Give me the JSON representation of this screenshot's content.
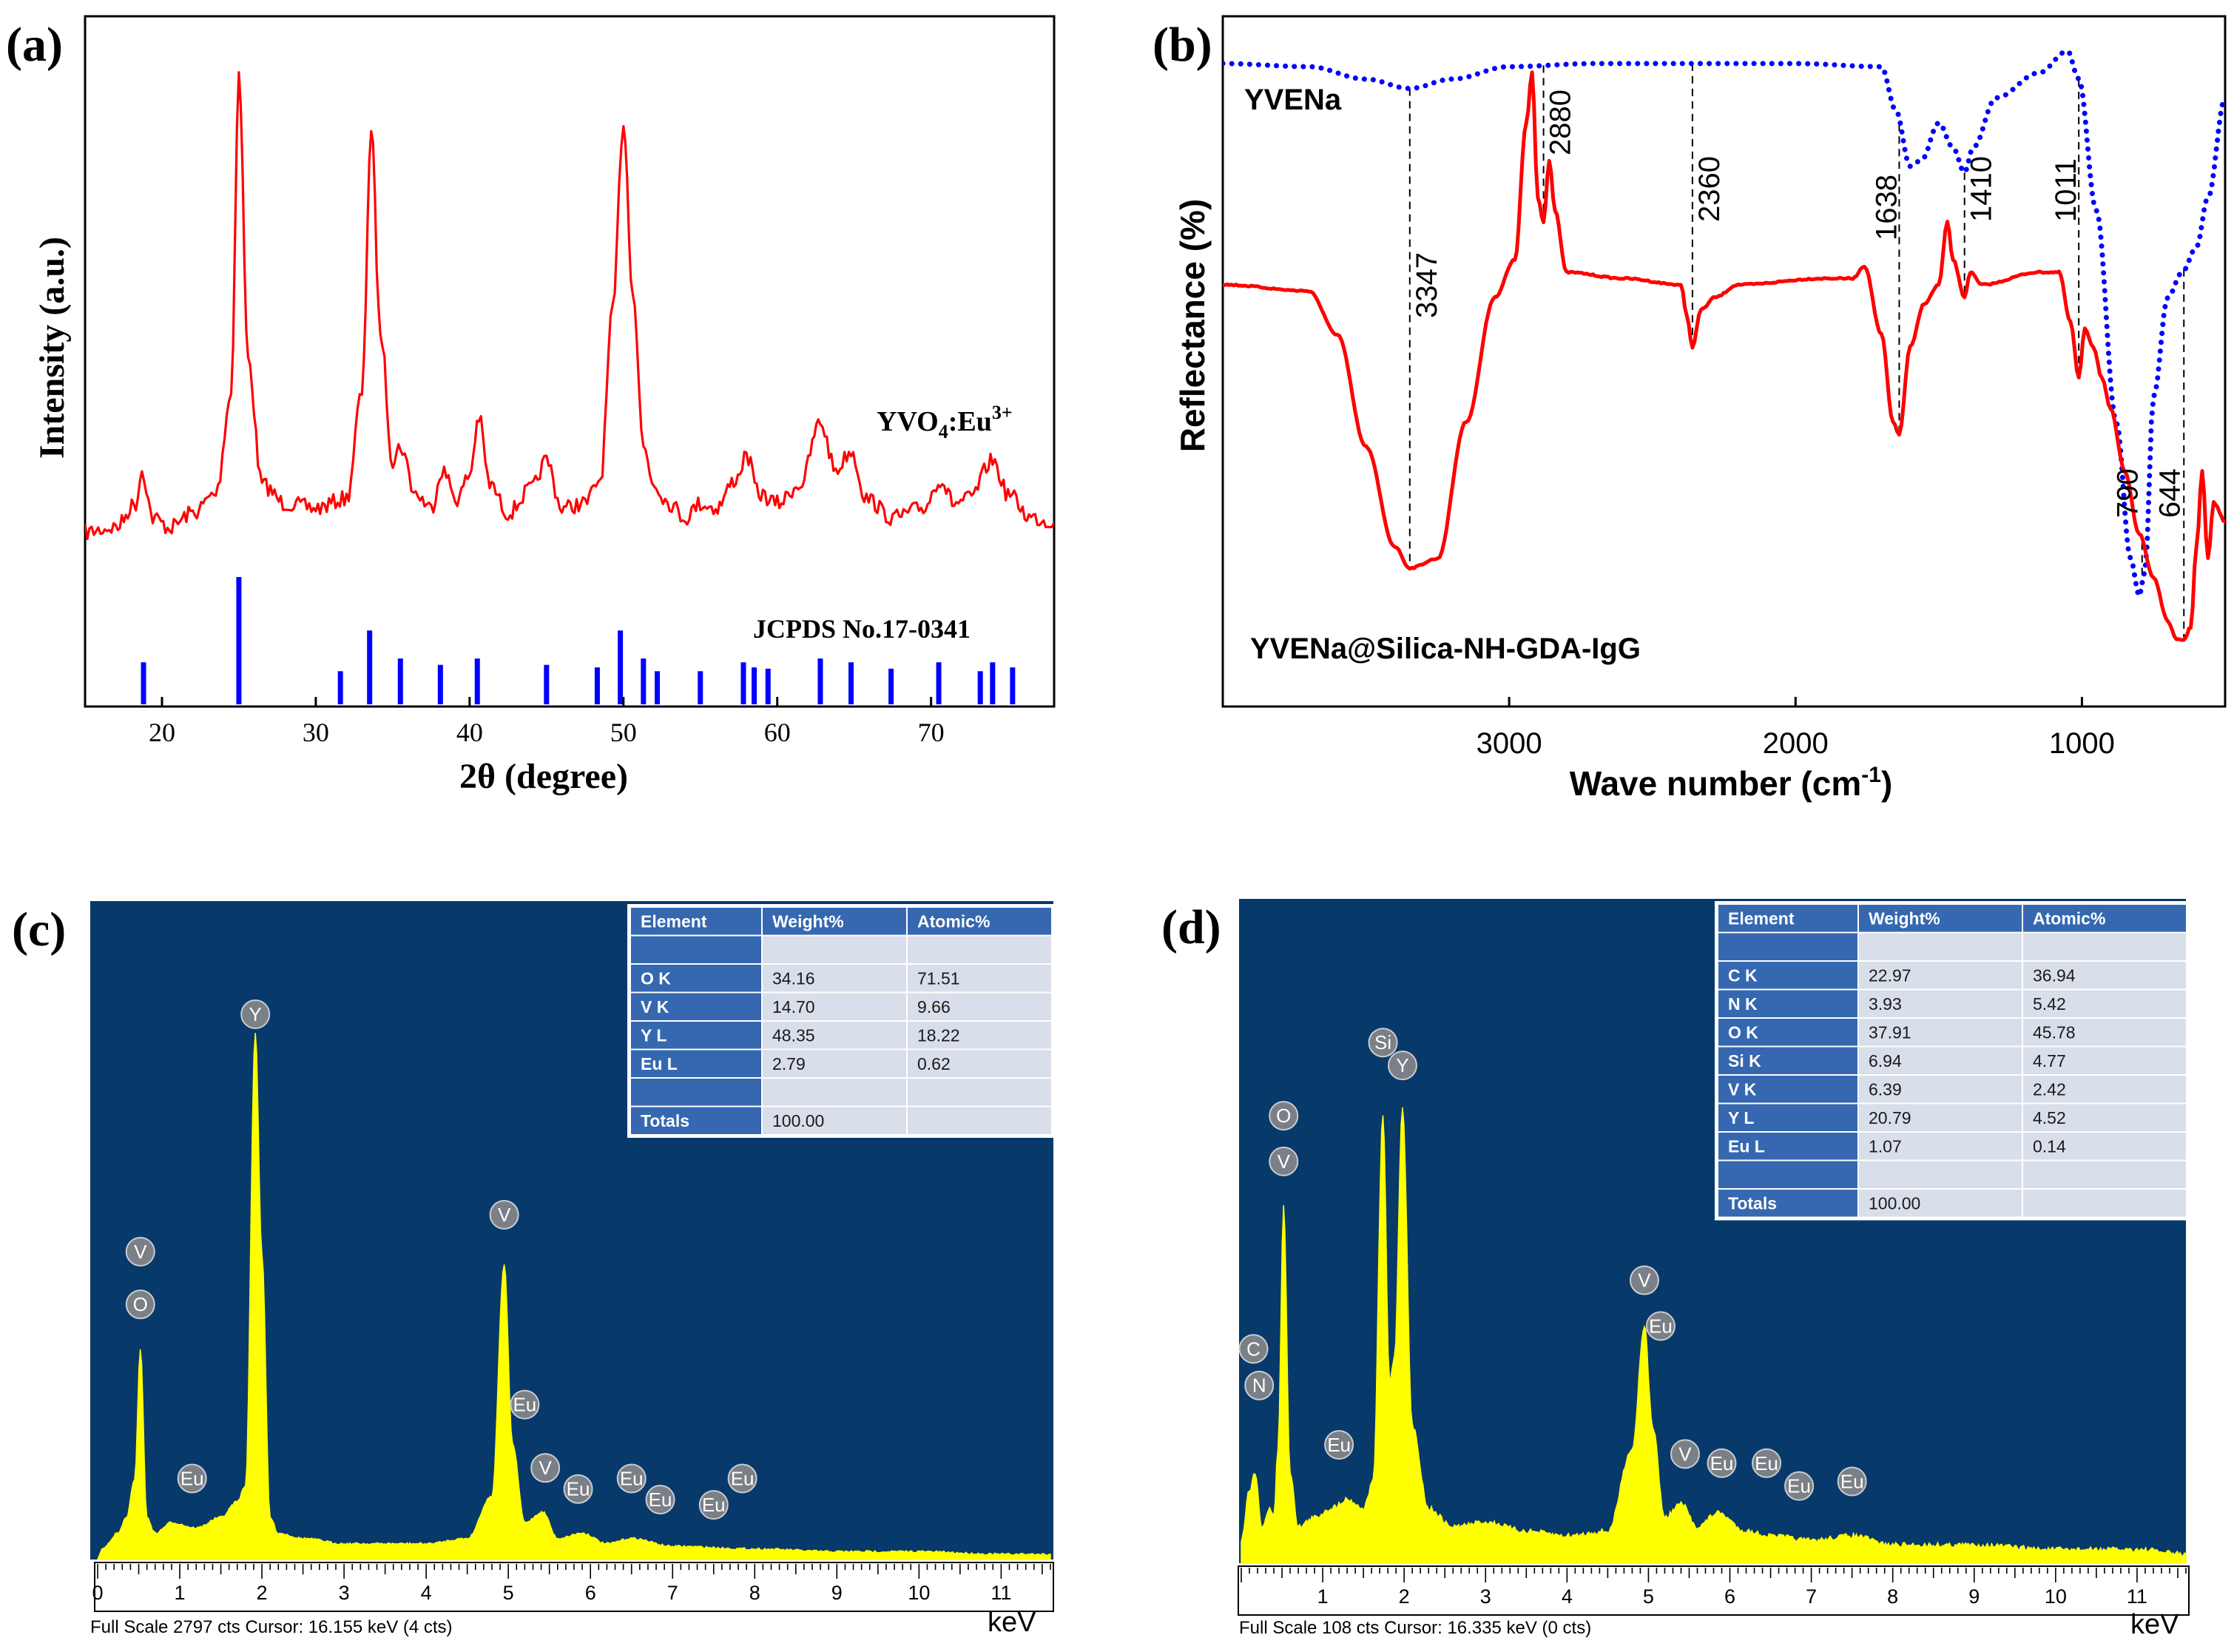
{
  "chart_data": [
    {
      "panel": "(a)",
      "type": "line",
      "xlabel": "2θ (degree)",
      "ylabel": "Intensity (a.u.)",
      "xlim": [
        15,
        78
      ],
      "xticks": [
        20,
        30,
        40,
        50,
        60,
        70
      ],
      "series": [
        {
          "name": "YVO4:Eu3+",
          "name_main": "YVO",
          "name_sub": "4",
          "name_rest": ":Eu",
          "name_sup": "3+",
          "color": "#ff0000",
          "x": [
            15,
            17,
            18.3,
            18.7,
            19.4,
            20.5,
            22,
            23.5,
            24.5,
            25.0,
            25.6,
            26.5,
            28,
            30,
            32,
            33.0,
            33.6,
            34.2,
            35.0,
            35.5,
            36.5,
            37.5,
            38.2,
            39.2,
            40.0,
            40.6,
            41.3,
            42.5,
            44.0,
            45.0,
            46.0,
            47.5,
            48.5,
            49.3,
            50.0,
            50.6,
            51.3,
            52.0,
            53.0,
            54.0,
            55.0,
            56.0,
            57.3,
            58.0,
            58.8,
            60.0,
            61.5,
            62.8,
            63.8,
            64.8,
            65.8,
            67.5,
            69.5,
            70.6,
            71.5,
            72.5,
            74.0,
            75.0,
            76.5,
            78
          ],
          "y": [
            0.04,
            0.05,
            0.1,
            0.17,
            0.07,
            0.05,
            0.08,
            0.12,
            0.33,
            1.0,
            0.4,
            0.14,
            0.1,
            0.09,
            0.11,
            0.33,
            0.88,
            0.46,
            0.19,
            0.22,
            0.12,
            0.09,
            0.17,
            0.11,
            0.16,
            0.28,
            0.14,
            0.08,
            0.13,
            0.19,
            0.09,
            0.1,
            0.15,
            0.5,
            0.9,
            0.55,
            0.22,
            0.14,
            0.1,
            0.07,
            0.1,
            0.09,
            0.15,
            0.2,
            0.12,
            0.1,
            0.14,
            0.27,
            0.17,
            0.21,
            0.11,
            0.07,
            0.09,
            0.15,
            0.1,
            0.11,
            0.19,
            0.12,
            0.07,
            0.06
          ]
        }
      ],
      "reference": {
        "label": "JCPDS No.17-0341",
        "color": "#0000ff",
        "x": [
          18.8,
          25.0,
          31.6,
          33.5,
          35.5,
          38.1,
          40.5,
          45.0,
          48.3,
          49.8,
          51.3,
          52.2,
          55.0,
          57.8,
          58.5,
          59.4,
          62.8,
          64.8,
          67.4,
          70.5,
          73.2,
          74.0,
          75.3
        ],
        "y": [
          0.33,
          1.0,
          0.26,
          0.58,
          0.36,
          0.31,
          0.36,
          0.31,
          0.29,
          0.58,
          0.36,
          0.26,
          0.26,
          0.33,
          0.29,
          0.28,
          0.36,
          0.33,
          0.28,
          0.33,
          0.26,
          0.33,
          0.29
        ]
      }
    },
    {
      "panel": "(b)",
      "type": "line",
      "xlabel": "Wave number (cm",
      "xlabel_sup": "-1",
      "xlabel_end": ")",
      "ylabel": "Reflectance (%)",
      "xlim": [
        4000,
        500
      ],
      "xticks": [
        3000,
        2000,
        1000
      ],
      "series": [
        {
          "name": "YVENa",
          "color": "#0000ff",
          "style": "dotted",
          "x": [
            4000,
            3700,
            3500,
            3347,
            3200,
            3000,
            2700,
            2400,
            2000,
            1700,
            1650,
            1600,
            1560,
            1500,
            1450,
            1410,
            1380,
            1300,
            1150,
            1050,
            1011,
            950,
            880,
            830,
            800,
            780,
            750,
            700,
            650,
            600,
            560,
            500
          ],
          "y": [
            0.955,
            0.95,
            0.93,
            0.915,
            0.93,
            0.95,
            0.955,
            0.955,
            0.955,
            0.95,
            0.88,
            0.79,
            0.8,
            0.86,
            0.82,
            0.78,
            0.82,
            0.9,
            0.94,
            0.975,
            0.93,
            0.72,
            0.38,
            0.16,
            0.1,
            0.14,
            0.42,
            0.58,
            0.62,
            0.66,
            0.74,
            0.9
          ]
        },
        {
          "name": "YVENa@Silica-NH-GDA-IgG",
          "color": "#ff0000",
          "style": "solid",
          "x": [
            4000,
            3700,
            3600,
            3500,
            3400,
            3347,
            3250,
            3150,
            3050,
            2980,
            2940,
            2920,
            2900,
            2880,
            2860,
            2840,
            2800,
            2600,
            2400,
            2380,
            2360,
            2330,
            2280,
            2200,
            1900,
            1800,
            1760,
            1700,
            1660,
            1638,
            1600,
            1550,
            1500,
            1470,
            1450,
            1410,
            1390,
            1350,
            1150,
            1080,
            1040,
            1011,
            990,
            960,
            930,
            900,
            850,
            800,
            750,
            700,
            670,
            644,
            620,
            600,
            580,
            560,
            540,
            500
          ],
          "y": [
            0.6,
            0.59,
            0.52,
            0.34,
            0.18,
            0.145,
            0.16,
            0.38,
            0.58,
            0.64,
            0.86,
            0.94,
            0.74,
            0.7,
            0.8,
            0.72,
            0.62,
            0.61,
            0.6,
            0.55,
            0.5,
            0.56,
            0.58,
            0.6,
            0.61,
            0.61,
            0.63,
            0.52,
            0.38,
            0.36,
            0.5,
            0.57,
            0.6,
            0.7,
            0.64,
            0.58,
            0.62,
            0.6,
            0.62,
            0.62,
            0.54,
            0.45,
            0.53,
            0.5,
            0.45,
            0.4,
            0.3,
            0.2,
            0.13,
            0.06,
            0.03,
            0.03,
            0.05,
            0.18,
            0.3,
            0.16,
            0.25,
            0.22
          ]
        }
      ],
      "annotations": [
        "3347",
        "2880",
        "2360",
        "1638",
        "1410",
        "1011",
        "790",
        "644"
      ],
      "annotation_x": [
        3347,
        2880,
        2360,
        1638,
        1410,
        1011,
        790,
        644
      ]
    },
    {
      "panel": "(c)",
      "type": "line",
      "xlabel": "keV",
      "xlim": [
        0,
        11.6
      ],
      "xticks": [
        0,
        1,
        2,
        3,
        4,
        5,
        6,
        7,
        8,
        9,
        10,
        11
      ],
      "footer": "Full Scale 2797 cts  Cursor: 16.155 keV (4 cts)",
      "series": [
        {
          "name": "EDS spectrum",
          "color": "#ffff00",
          "x": [
            0.05,
            0.25,
            0.35,
            0.45,
            0.52,
            0.6,
            0.7,
            0.9,
            1.2,
            1.5,
            1.7,
            1.8,
            1.92,
            2.0,
            2.1,
            2.2,
            2.5,
            3.0,
            3.5,
            4.0,
            4.5,
            4.8,
            4.95,
            5.05,
            5.2,
            5.42,
            5.6,
            5.9,
            6.2,
            6.5,
            7.0,
            8.0,
            9.0,
            10.0,
            11.0,
            11.6
          ],
          "y": [
            0.02,
            0.05,
            0.08,
            0.15,
            0.4,
            0.08,
            0.05,
            0.07,
            0.06,
            0.08,
            0.11,
            0.14,
            1.0,
            0.58,
            0.08,
            0.05,
            0.04,
            0.03,
            0.03,
            0.03,
            0.04,
            0.12,
            0.56,
            0.22,
            0.07,
            0.09,
            0.04,
            0.05,
            0.03,
            0.04,
            0.025,
            0.02,
            0.015,
            0.015,
            0.01,
            0.01
          ]
        }
      ],
      "peak_labels": [
        {
          "text": "Y",
          "x": 1.92,
          "y": 1.0
        },
        {
          "text": "V",
          "x": 0.52,
          "y": 0.55
        },
        {
          "text": "O",
          "x": 0.52,
          "y": 0.45
        },
        {
          "text": "Eu",
          "x": 1.15,
          "y": 0.12
        },
        {
          "text": "V",
          "x": 4.95,
          "y": 0.62
        },
        {
          "text": "Eu",
          "x": 5.2,
          "y": 0.26
        },
        {
          "text": "V",
          "x": 5.45,
          "y": 0.14
        },
        {
          "text": "Eu",
          "x": 5.85,
          "y": 0.1
        },
        {
          "text": "Eu",
          "x": 6.5,
          "y": 0.12
        },
        {
          "text": "Eu",
          "x": 6.85,
          "y": 0.08
        },
        {
          "text": "Eu",
          "x": 7.5,
          "y": 0.07
        },
        {
          "text": "Eu",
          "x": 7.85,
          "y": 0.12
        }
      ],
      "table": {
        "headers": [
          "Element",
          "Weight%",
          "Atomic%"
        ],
        "rows": [
          [
            "",
            "",
            ""
          ],
          [
            "O K",
            "34.16",
            "71.51"
          ],
          [
            "V K",
            "14.70",
            "9.66"
          ],
          [
            "Y L",
            "48.35",
            "18.22"
          ],
          [
            "Eu L",
            "2.79",
            "0.62"
          ],
          [
            "",
            "",
            ""
          ],
          [
            "Totals",
            "100.00",
            ""
          ]
        ]
      }
    },
    {
      "panel": "(d)",
      "type": "line",
      "xlabel": "keV",
      "xlim": [
        0,
        11.6
      ],
      "xticks": [
        1,
        2,
        3,
        4,
        5,
        6,
        7,
        8,
        9,
        10,
        11
      ],
      "footer": "Full Scale 108 cts  Cursor: 16.335 keV (0 cts)",
      "series": [
        {
          "name": "EDS spectrum",
          "color": "#ffff00",
          "x": [
            0.0,
            0.1,
            0.17,
            0.25,
            0.35,
            0.4,
            0.45,
            0.52,
            0.6,
            0.7,
            0.9,
            1.1,
            1.3,
            1.5,
            1.62,
            1.74,
            1.82,
            1.88,
            1.98,
            2.1,
            2.3,
            2.6,
            3.0,
            3.5,
            4.0,
            4.5,
            4.8,
            4.95,
            5.05,
            5.2,
            5.4,
            5.6,
            5.85,
            6.2,
            6.5,
            7.0,
            7.5,
            8.0,
            9.0,
            10.0,
            11.0,
            11.6
          ],
          "y": [
            0.05,
            0.16,
            0.2,
            0.08,
            0.12,
            0.1,
            0.25,
            0.78,
            0.2,
            0.08,
            0.1,
            0.12,
            0.14,
            0.12,
            0.18,
            0.98,
            0.4,
            0.45,
            1.0,
            0.3,
            0.12,
            0.08,
            0.09,
            0.07,
            0.06,
            0.07,
            0.25,
            0.52,
            0.3,
            0.1,
            0.13,
            0.08,
            0.11,
            0.07,
            0.06,
            0.05,
            0.06,
            0.04,
            0.04,
            0.03,
            0.03,
            0.02
          ]
        }
      ],
      "peak_labels": [
        {
          "text": "Si",
          "x": 1.74,
          "y": 1.1
        },
        {
          "text": "Y",
          "x": 1.98,
          "y": 1.05
        },
        {
          "text": "O",
          "x": 0.52,
          "y": 0.94
        },
        {
          "text": "V",
          "x": 0.52,
          "y": 0.84
        },
        {
          "text": "C",
          "x": 0.15,
          "y": 0.43
        },
        {
          "text": "N",
          "x": 0.22,
          "y": 0.35
        },
        {
          "text": "Eu",
          "x": 1.2,
          "y": 0.22
        },
        {
          "text": "V",
          "x": 4.95,
          "y": 0.58
        },
        {
          "text": "Eu",
          "x": 5.15,
          "y": 0.48
        },
        {
          "text": "V",
          "x": 5.45,
          "y": 0.2
        },
        {
          "text": "Eu",
          "x": 5.9,
          "y": 0.18
        },
        {
          "text": "Eu",
          "x": 6.45,
          "y": 0.18
        },
        {
          "text": "Eu",
          "x": 6.85,
          "y": 0.13
        },
        {
          "text": "Eu",
          "x": 7.5,
          "y": 0.14
        }
      ],
      "table": {
        "headers": [
          "Element",
          "Weight%",
          "Atomic%"
        ],
        "rows": [
          [
            "",
            "",
            ""
          ],
          [
            "C K",
            "22.97",
            "36.94"
          ],
          [
            "N K",
            "3.93",
            "5.42"
          ],
          [
            "O K",
            "37.91",
            "45.78"
          ],
          [
            "Si K",
            "6.94",
            "4.77"
          ],
          [
            "V K",
            "6.39",
            "2.42"
          ],
          [
            "Y L",
            "20.79",
            "4.52"
          ],
          [
            "Eu L",
            "1.07",
            "0.14"
          ],
          [
            "",
            "",
            ""
          ],
          [
            "Totals",
            "100.00",
            ""
          ]
        ]
      }
    }
  ],
  "colors": {
    "eds_background": "#07396b",
    "table_header": "#3568b0",
    "table_cell": "#d8dfea",
    "marker_fill": "#7b7f86"
  }
}
